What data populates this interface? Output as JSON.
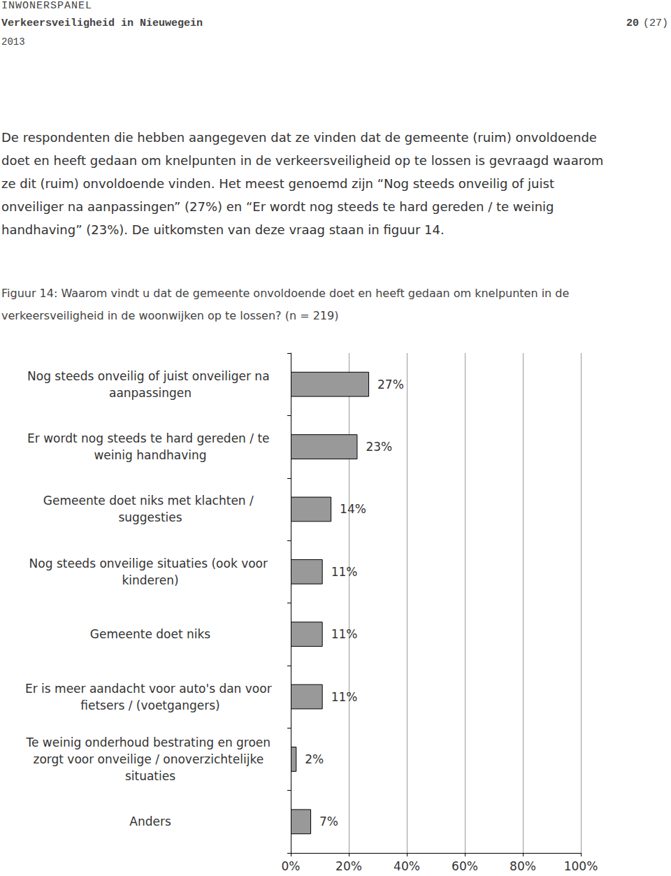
{
  "header": {
    "series": "INWONERSPANEL",
    "title": "Verkeersveiligheid in Nieuwegein",
    "year": "2013",
    "page": "20",
    "page_total": "(27)"
  },
  "paragraph": "De respondenten die hebben aangegeven dat ze vinden dat de gemeente (ruim) onvoldoende doet en heeft gedaan om knelpunten in de verkeersveiligheid op te lossen is gevraagd waarom ze dit (ruim) onvoldoende vinden. Het meest genoemd zijn “Nog steeds onveilig of juist onveiliger na aanpassingen” (27%) en “Er wordt nog steeds te hard gereden / te weinig handhaving” (23%). De uitkomsten van deze vraag staan in figuur 14.",
  "caption": "Figuur 14: Waarom vindt u dat de gemeente onvoldoende doet en heeft gedaan om knelpunten in de verkeersveiligheid in de woonwijken op te lossen? (n = 219)",
  "chart_data": {
    "type": "bar",
    "orientation": "horizontal",
    "categories": [
      "Nog steeds onveilig of juist onveiliger na aanpassingen",
      "Er wordt nog steeds te hard gereden / te weinig handhaving",
      "Gemeente doet niks met klachten / suggesties",
      "Nog steeds onveilige situaties (ook voor kinderen)",
      "Gemeente doet niks",
      "Er is meer aandacht voor auto's dan voor fietsers / (voetgangers)",
      "Te weinig onderhoud bestrating en groen zorgt voor onveilige / onoverzichtelijke situaties",
      "Anders"
    ],
    "values": [
      27,
      23,
      14,
      11,
      11,
      11,
      2,
      7
    ],
    "value_labels": [
      "27%",
      "23%",
      "14%",
      "11%",
      "11%",
      "11%",
      "2%",
      "7%"
    ],
    "color": "#999999",
    "xlim": [
      0,
      100
    ],
    "xticks": [
      {
        "value": 0,
        "label": "0%"
      },
      {
        "value": 20,
        "label": "20%"
      },
      {
        "value": 40,
        "label": "40%"
      },
      {
        "value": 60,
        "label": "60%"
      },
      {
        "value": 80,
        "label": "80%"
      },
      {
        "value": 100,
        "label": "100%"
      }
    ],
    "grid": true,
    "data_labels": true
  }
}
